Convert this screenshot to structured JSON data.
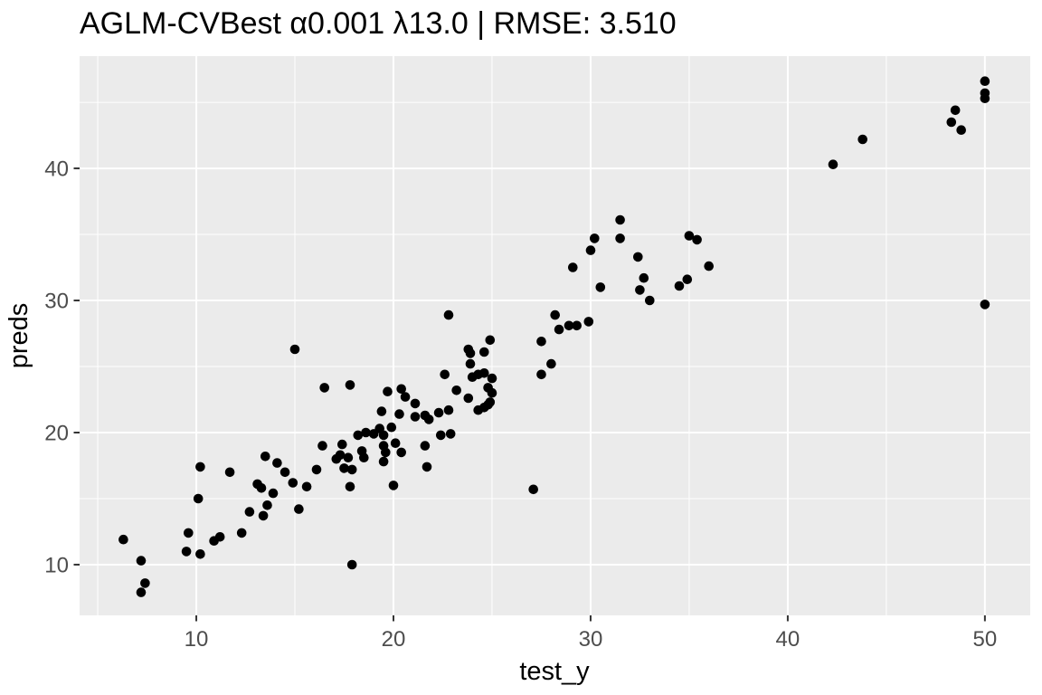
{
  "chart_data": {
    "type": "scatter",
    "title": "AGLM-CVBest α0.001 λ13.0 | RMSE: 3.510",
    "xlabel": "test_y",
    "ylabel": "preds",
    "x_ticks": [
      10,
      20,
      30,
      40,
      50
    ],
    "y_ticks": [
      10,
      20,
      30,
      40
    ],
    "x_minor_gridlines": [
      5,
      15,
      25,
      35,
      45
    ],
    "y_minor_gridlines": [
      15,
      25,
      35,
      45
    ],
    "xlim": [
      4.08,
      52.3
    ],
    "ylim": [
      6.16,
      48.5
    ],
    "grid": "major-and-minor",
    "legend": "none",
    "colors": {
      "panel_background": "#EBEBEB",
      "gridline": "#FFFFFF",
      "point": "#000000",
      "tick_label": "#4D4D4D",
      "tick_mark": "#333333",
      "title_text": "#000000"
    },
    "points": [
      [
        6.3,
        11.9
      ],
      [
        7.2,
        10.3
      ],
      [
        7.4,
        8.6
      ],
      [
        7.2,
        7.9
      ],
      [
        9.6,
        12.4
      ],
      [
        9.5,
        11.0
      ],
      [
        10.2,
        10.8
      ],
      [
        10.1,
        15.0
      ],
      [
        10.2,
        17.4
      ],
      [
        10.9,
        11.8
      ],
      [
        11.2,
        12.1
      ],
      [
        11.7,
        17.0
      ],
      [
        12.3,
        12.4
      ],
      [
        12.7,
        14.0
      ],
      [
        13.4,
        13.7
      ],
      [
        13.6,
        14.5
      ],
      [
        13.1,
        16.1
      ],
      [
        13.3,
        15.8
      ],
      [
        13.9,
        15.4
      ],
      [
        13.5,
        18.2
      ],
      [
        14.1,
        17.7
      ],
      [
        14.5,
        17.0
      ],
      [
        15.2,
        14.2
      ],
      [
        15.0,
        26.3
      ],
      [
        14.9,
        16.2
      ],
      [
        15.6,
        15.9
      ],
      [
        16.1,
        17.2
      ],
      [
        16.4,
        19.0
      ],
      [
        17.4,
        19.1
      ],
      [
        16.5,
        23.4
      ],
      [
        17.8,
        23.6
      ],
      [
        17.5,
        17.3
      ],
      [
        17.9,
        17.2
      ],
      [
        17.8,
        15.9
      ],
      [
        17.9,
        10.0
      ],
      [
        17.1,
        18.0
      ],
      [
        17.3,
        18.3
      ],
      [
        17.7,
        18.1
      ],
      [
        18.4,
        18.6
      ],
      [
        18.5,
        18.1
      ],
      [
        18.2,
        19.8
      ],
      [
        18.6,
        20.0
      ],
      [
        19.0,
        19.9
      ],
      [
        19.3,
        20.3
      ],
      [
        19.5,
        19.8
      ],
      [
        19.4,
        21.6
      ],
      [
        19.7,
        23.1
      ],
      [
        20.4,
        23.3
      ],
      [
        20.6,
        22.7
      ],
      [
        19.9,
        20.4
      ],
      [
        20.1,
        19.2
      ],
      [
        20.4,
        18.5
      ],
      [
        19.5,
        19.0
      ],
      [
        19.6,
        18.5
      ],
      [
        19.5,
        17.8
      ],
      [
        20.0,
        16.0
      ],
      [
        20.3,
        21.4
      ],
      [
        21.1,
        21.2
      ],
      [
        21.6,
        21.3
      ],
      [
        21.8,
        21.0
      ],
      [
        21.1,
        22.2
      ],
      [
        21.6,
        19.0
      ],
      [
        21.7,
        17.4
      ],
      [
        22.3,
        21.5
      ],
      [
        22.8,
        21.7
      ],
      [
        22.4,
        19.8
      ],
      [
        22.9,
        19.9
      ],
      [
        23.2,
        23.2
      ],
      [
        23.8,
        22.6
      ],
      [
        22.6,
        24.4
      ],
      [
        22.8,
        28.9
      ],
      [
        23.9,
        25.2
      ],
      [
        23.8,
        26.3
      ],
      [
        23.9,
        26.0
      ],
      [
        24.0,
        24.2
      ],
      [
        24.3,
        24.4
      ],
      [
        24.6,
        24.5
      ],
      [
        25.0,
        24.1
      ],
      [
        24.8,
        23.4
      ],
      [
        25.0,
        23.0
      ],
      [
        24.9,
        22.3
      ],
      [
        24.6,
        21.9
      ],
      [
        24.3,
        21.7
      ],
      [
        24.8,
        22.1
      ],
      [
        24.9,
        27.0
      ],
      [
        24.6,
        26.1
      ],
      [
        27.1,
        15.7
      ],
      [
        27.5,
        26.9
      ],
      [
        27.5,
        24.4
      ],
      [
        28.0,
        25.2
      ],
      [
        28.2,
        28.9
      ],
      [
        28.4,
        27.8
      ],
      [
        28.9,
        28.1
      ],
      [
        29.3,
        28.1
      ],
      [
        29.9,
        28.4
      ],
      [
        29.1,
        32.5
      ],
      [
        30.0,
        33.8
      ],
      [
        30.2,
        34.7
      ],
      [
        30.5,
        31.0
      ],
      [
        31.5,
        36.1
      ],
      [
        31.5,
        34.7
      ],
      [
        32.4,
        33.3
      ],
      [
        32.7,
        31.7
      ],
      [
        32.5,
        30.8
      ],
      [
        33.0,
        30.0
      ],
      [
        34.5,
        31.1
      ],
      [
        34.9,
        31.6
      ],
      [
        35.0,
        34.9
      ],
      [
        35.4,
        34.6
      ],
      [
        36.0,
        32.6
      ],
      [
        42.3,
        40.3
      ],
      [
        43.8,
        42.2
      ],
      [
        48.3,
        43.5
      ],
      [
        48.5,
        44.4
      ],
      [
        48.8,
        42.9
      ],
      [
        50.0,
        45.3
      ],
      [
        50.0,
        45.7
      ],
      [
        50.0,
        46.6
      ],
      [
        50.0,
        29.7
      ]
    ]
  }
}
